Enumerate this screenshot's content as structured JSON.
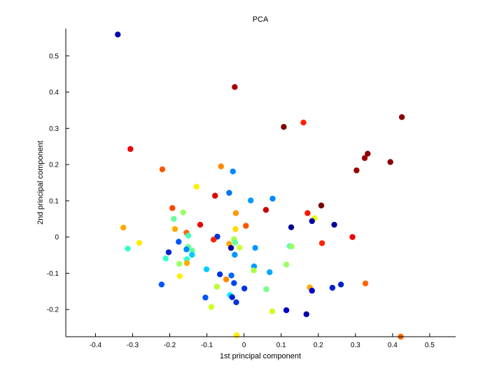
{
  "chart_data": {
    "type": "scatter",
    "title": "PCA",
    "xlabel": "1st principal component",
    "ylabel": "2nd principal component",
    "xlim": [
      -0.48,
      0.57
    ],
    "ylim": [
      -0.275,
      0.575
    ],
    "xticks": [
      -0.4,
      -0.3,
      -0.2,
      -0.1,
      0,
      0.1,
      0.2,
      0.3,
      0.4,
      0.5
    ],
    "xtick_labels": [
      "-0.4",
      "-0.3",
      "-0.2",
      "-0.1",
      "0",
      "0.1",
      "0.2",
      "0.3",
      "0.4",
      "0.5"
    ],
    "yticks": [
      -0.2,
      -0.1,
      0,
      0.1,
      0.2,
      0.3,
      0.4,
      0.5
    ],
    "ytick_labels": [
      "-0.2",
      "-0.1",
      "0",
      "0.1",
      "0.2",
      "0.3",
      "0.4",
      "0.5"
    ],
    "grid": false,
    "legend": "none",
    "points": [
      {
        "x": -0.34,
        "y": 0.559,
        "color": "#0000aa"
      },
      {
        "x": -0.025,
        "y": 0.414,
        "color": "#aa0000"
      },
      {
        "x": 0.425,
        "y": 0.331,
        "color": "#8b0000"
      },
      {
        "x": 0.16,
        "y": 0.316,
        "color": "#ff2200"
      },
      {
        "x": 0.107,
        "y": 0.304,
        "color": "#7a0000"
      },
      {
        "x": -0.306,
        "y": 0.243,
        "color": "#ee0000"
      },
      {
        "x": 0.333,
        "y": 0.23,
        "color": "#8b0000"
      },
      {
        "x": 0.325,
        "y": 0.218,
        "color": "#990000"
      },
      {
        "x": 0.394,
        "y": 0.207,
        "color": "#8b0000"
      },
      {
        "x": -0.062,
        "y": 0.195,
        "color": "#ff8800"
      },
      {
        "x": -0.22,
        "y": 0.187,
        "color": "#ff5500"
      },
      {
        "x": 0.303,
        "y": 0.184,
        "color": "#990000"
      },
      {
        "x": -0.03,
        "y": 0.181,
        "color": "#0088ff"
      },
      {
        "x": -0.128,
        "y": 0.139,
        "color": "#ffee00"
      },
      {
        "x": -0.04,
        "y": 0.122,
        "color": "#0077ee"
      },
      {
        "x": -0.078,
        "y": 0.114,
        "color": "#dd0000"
      },
      {
        "x": 0.077,
        "y": 0.106,
        "color": "#0088ff"
      },
      {
        "x": 0.018,
        "y": 0.101,
        "color": "#0099ff"
      },
      {
        "x": 0.208,
        "y": 0.087,
        "color": "#7a0000"
      },
      {
        "x": -0.193,
        "y": 0.08,
        "color": "#ff4400"
      },
      {
        "x": 0.059,
        "y": 0.075,
        "color": "#cc0000"
      },
      {
        "x": -0.164,
        "y": 0.068,
        "color": "#99ff66"
      },
      {
        "x": 0.171,
        "y": 0.066,
        "color": "#ff1100"
      },
      {
        "x": -0.022,
        "y": 0.066,
        "color": "#ff9900"
      },
      {
        "x": 0.19,
        "y": 0.052,
        "color": "#eeff00"
      },
      {
        "x": -0.189,
        "y": 0.05,
        "color": "#66ff99"
      },
      {
        "x": 0.183,
        "y": 0.044,
        "color": "#0000aa"
      },
      {
        "x": 0.243,
        "y": 0.034,
        "color": "#000099"
      },
      {
        "x": -0.118,
        "y": 0.034,
        "color": "#ee0000"
      },
      {
        "x": 0.005,
        "y": 0.031,
        "color": "#ff5500"
      },
      {
        "x": 0.127,
        "y": 0.027,
        "color": "#000099"
      },
      {
        "x": -0.325,
        "y": 0.026,
        "color": "#ffaa00"
      },
      {
        "x": -0.186,
        "y": 0.022,
        "color": "#ffaa00"
      },
      {
        "x": -0.023,
        "y": 0.022,
        "color": "#ffdd00"
      },
      {
        "x": -0.155,
        "y": 0.012,
        "color": "#ff6600"
      },
      {
        "x": -0.15,
        "y": 0.004,
        "color": "#44ffbb"
      },
      {
        "x": -0.072,
        "y": 0.001,
        "color": "#0033dd"
      },
      {
        "x": 0.292,
        "y": 0.0,
        "color": "#ee0000"
      },
      {
        "x": -0.082,
        "y": -0.007,
        "color": "#ff2200"
      },
      {
        "x": -0.027,
        "y": -0.006,
        "color": "#aaff44"
      },
      {
        "x": -0.176,
        "y": -0.013,
        "color": "#0055ff"
      },
      {
        "x": -0.282,
        "y": -0.016,
        "color": "#ffee00"
      },
      {
        "x": 0.21,
        "y": -0.017,
        "color": "#ff2200"
      },
      {
        "x": -0.024,
        "y": -0.015,
        "color": "#66ff99"
      },
      {
        "x": -0.04,
        "y": -0.019,
        "color": "#ffaa00"
      },
      {
        "x": -0.035,
        "y": -0.03,
        "color": "#000099"
      },
      {
        "x": -0.012,
        "y": -0.029,
        "color": "#ccff33"
      },
      {
        "x": 0.123,
        "y": -0.025,
        "color": "#44ffbb"
      },
      {
        "x": 0.128,
        "y": -0.026,
        "color": "#99ff66"
      },
      {
        "x": 0.03,
        "y": -0.03,
        "color": "#0099ff"
      },
      {
        "x": -0.15,
        "y": -0.027,
        "color": "#66ff99"
      },
      {
        "x": -0.313,
        "y": -0.032,
        "color": "#33ffcc"
      },
      {
        "x": -0.155,
        "y": -0.034,
        "color": "#0088ff"
      },
      {
        "x": -0.14,
        "y": -0.037,
        "color": "#66ff99"
      },
      {
        "x": -0.203,
        "y": -0.042,
        "color": "#0022cc"
      },
      {
        "x": -0.14,
        "y": -0.049,
        "color": "#00ccff"
      },
      {
        "x": -0.025,
        "y": -0.049,
        "color": "#0099ff"
      },
      {
        "x": -0.211,
        "y": -0.059,
        "color": "#33ffcc"
      },
      {
        "x": -0.154,
        "y": -0.061,
        "color": "#33ffcc"
      },
      {
        "x": -0.154,
        "y": -0.072,
        "color": "#ffaa00"
      },
      {
        "x": -0.174,
        "y": -0.074,
        "color": "#99ff66"
      },
      {
        "x": 0.114,
        "y": -0.076,
        "color": "#99ff66"
      },
      {
        "x": 0.027,
        "y": -0.081,
        "color": "#0099ff"
      },
      {
        "x": -0.101,
        "y": -0.089,
        "color": "#00ccff"
      },
      {
        "x": 0.026,
        "y": -0.092,
        "color": "#aaff44"
      },
      {
        "x": 0.069,
        "y": -0.097,
        "color": "#00aaff"
      },
      {
        "x": -0.065,
        "y": -0.103,
        "color": "#0033dd"
      },
      {
        "x": -0.034,
        "y": -0.106,
        "color": "#0066ff"
      },
      {
        "x": -0.173,
        "y": -0.108,
        "color": "#ffee00"
      },
      {
        "x": -0.048,
        "y": -0.117,
        "color": "#ff8800"
      },
      {
        "x": -0.027,
        "y": -0.127,
        "color": "#0044ee"
      },
      {
        "x": 0.261,
        "y": -0.131,
        "color": "#0022cc"
      },
      {
        "x": -0.222,
        "y": -0.131,
        "color": "#0055ff"
      },
      {
        "x": 0.327,
        "y": -0.128,
        "color": "#ff6600"
      },
      {
        "x": -0.073,
        "y": -0.137,
        "color": "#bbff33"
      },
      {
        "x": 0.177,
        "y": -0.139,
        "color": "#ffaa00"
      },
      {
        "x": 0.238,
        "y": -0.14,
        "color": "#0022cc"
      },
      {
        "x": 0.001,
        "y": -0.142,
        "color": "#0033dd"
      },
      {
        "x": 0.06,
        "y": -0.144,
        "color": "#77ff88"
      },
      {
        "x": 0.183,
        "y": -0.148,
        "color": "#0000cc"
      },
      {
        "x": -0.038,
        "y": -0.16,
        "color": "#00eeff"
      },
      {
        "x": -0.032,
        "y": -0.166,
        "color": "#0022cc"
      },
      {
        "x": -0.104,
        "y": -0.167,
        "color": "#0055ff"
      },
      {
        "x": -0.021,
        "y": -0.18,
        "color": "#0033dd"
      },
      {
        "x": -0.088,
        "y": -0.193,
        "color": "#ccff22"
      },
      {
        "x": 0.076,
        "y": -0.205,
        "color": "#ccff22"
      },
      {
        "x": 0.114,
        "y": -0.202,
        "color": "#0000cc"
      },
      {
        "x": 0.168,
        "y": -0.213,
        "color": "#0000aa"
      },
      {
        "x": -0.02,
        "y": -0.271,
        "color": "#ffee00"
      },
      {
        "x": 0.422,
        "y": -0.275,
        "color": "#ff6600"
      }
    ]
  }
}
